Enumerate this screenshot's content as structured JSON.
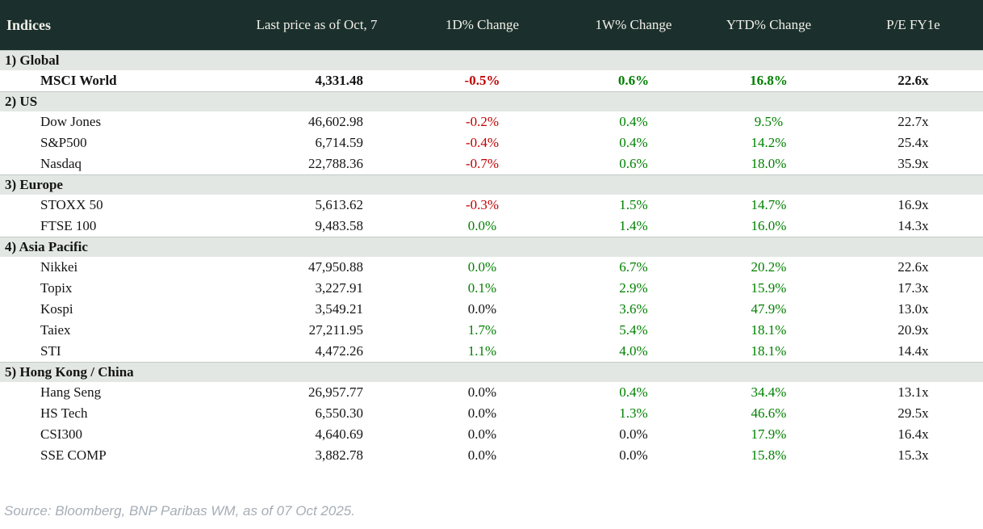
{
  "colors": {
    "header_bg": "#1b302c",
    "header_text": "#f2efe9",
    "section_bg": "#e2e7e3",
    "negative": "#c00000",
    "positive": "#008000",
    "neutral": "#141414",
    "source_text": "#a6aeb6"
  },
  "header": {
    "columns": [
      "Indices",
      "Last price as of Oct, 7",
      "1D% Change",
      "1W% Change",
      "YTD% Change",
      "P/E FY1e"
    ]
  },
  "sections": [
    {
      "label": "1) Global",
      "rows": [
        {
          "name": "MSCI World",
          "bold": true,
          "last": "4,331.48",
          "d1": "-0.5%",
          "d1_color": "neg",
          "w1": "0.6%",
          "w1_color": "pos",
          "ytd": "16.8%",
          "ytd_color": "pos",
          "pe": "22.6x"
        }
      ]
    },
    {
      "label": "2) US",
      "rows": [
        {
          "name": "Dow Jones",
          "bold": false,
          "last": "46,602.98",
          "d1": "-0.2%",
          "d1_color": "neg",
          "w1": "0.4%",
          "w1_color": "pos",
          "ytd": "9.5%",
          "ytd_color": "pos",
          "pe": "22.7x"
        },
        {
          "name": "S&P500",
          "bold": false,
          "last": "6,714.59",
          "d1": "-0.4%",
          "d1_color": "neg",
          "w1": "0.4%",
          "w1_color": "pos",
          "ytd": "14.2%",
          "ytd_color": "pos",
          "pe": "25.4x"
        },
        {
          "name": "Nasdaq",
          "bold": false,
          "last": "22,788.36",
          "d1": "-0.7%",
          "d1_color": "neg",
          "w1": "0.6%",
          "w1_color": "pos",
          "ytd": "18.0%",
          "ytd_color": "pos",
          "pe": "35.9x"
        }
      ]
    },
    {
      "label": "3) Europe",
      "rows": [
        {
          "name": "STOXX 50",
          "bold": false,
          "last": "5,613.62",
          "d1": "-0.3%",
          "d1_color": "neg",
          "w1": "1.5%",
          "w1_color": "pos",
          "ytd": "14.7%",
          "ytd_color": "pos",
          "pe": "16.9x"
        },
        {
          "name": "FTSE 100",
          "bold": false,
          "last": "9,483.58",
          "d1": "0.0%",
          "d1_color": "pos",
          "w1": "1.4%",
          "w1_color": "pos",
          "ytd": "16.0%",
          "ytd_color": "pos",
          "pe": "14.3x"
        }
      ]
    },
    {
      "label": "4) Asia Pacific",
      "rows": [
        {
          "name": "Nikkei",
          "bold": false,
          "last": "47,950.88",
          "d1": "0.0%",
          "d1_color": "pos",
          "w1": "6.7%",
          "w1_color": "pos",
          "ytd": "20.2%",
          "ytd_color": "pos",
          "pe": "22.6x"
        },
        {
          "name": "Topix",
          "bold": false,
          "last": "3,227.91",
          "d1": "0.1%",
          "d1_color": "pos",
          "w1": "2.9%",
          "w1_color": "pos",
          "ytd": "15.9%",
          "ytd_color": "pos",
          "pe": "17.3x"
        },
        {
          "name": "Kospi",
          "bold": false,
          "last": "3,549.21",
          "d1": "0.0%",
          "d1_color": "flat",
          "w1": "3.6%",
          "w1_color": "pos",
          "ytd": "47.9%",
          "ytd_color": "pos",
          "pe": "13.0x"
        },
        {
          "name": "Taiex",
          "bold": false,
          "last": "27,211.95",
          "d1": "1.7%",
          "d1_color": "pos",
          "w1": "5.4%",
          "w1_color": "pos",
          "ytd": "18.1%",
          "ytd_color": "pos",
          "pe": "20.9x"
        },
        {
          "name": "STI",
          "bold": false,
          "last": "4,472.26",
          "d1": "1.1%",
          "d1_color": "pos",
          "w1": "4.0%",
          "w1_color": "pos",
          "ytd": "18.1%",
          "ytd_color": "pos",
          "pe": "14.4x"
        }
      ]
    },
    {
      "label": "5) Hong Kong / China",
      "rows": [
        {
          "name": "Hang Seng",
          "bold": false,
          "last": "26,957.77",
          "d1": "0.0%",
          "d1_color": "flat",
          "w1": "0.4%",
          "w1_color": "pos",
          "ytd": "34.4%",
          "ytd_color": "pos",
          "pe": "13.1x"
        },
        {
          "name": "HS Tech",
          "bold": false,
          "last": "6,550.30",
          "d1": "0.0%",
          "d1_color": "flat",
          "w1": "1.3%",
          "w1_color": "pos",
          "ytd": "46.6%",
          "ytd_color": "pos",
          "pe": "29.5x"
        },
        {
          "name": "CSI300",
          "bold": false,
          "last": "4,640.69",
          "d1": "0.0%",
          "d1_color": "flat",
          "w1": "0.0%",
          "w1_color": "flat",
          "ytd": "17.9%",
          "ytd_color": "pos",
          "pe": "16.4x"
        },
        {
          "name": "SSE COMP",
          "bold": false,
          "last": "3,882.78",
          "d1": "0.0%",
          "d1_color": "flat",
          "w1": "0.0%",
          "w1_color": "flat",
          "ytd": "15.8%",
          "ytd_color": "pos",
          "pe": "15.3x"
        }
      ]
    }
  ],
  "footer": {
    "source": "Source: Bloomberg, BNP Paribas WM, as of 07 Oct 2025."
  },
  "chart_data": {
    "type": "table",
    "title": "Indices",
    "columns": [
      "Indices",
      "Last price as of Oct, 7",
      "1D% Change",
      "1W% Change",
      "YTD% Change",
      "P/E FY1e"
    ],
    "rows": [
      [
        "1) Global",
        "",
        "",
        "",
        "",
        ""
      ],
      [
        "MSCI World",
        "4,331.48",
        "-0.5%",
        "0.6%",
        "16.8%",
        "22.6x"
      ],
      [
        "2) US",
        "",
        "",
        "",
        "",
        ""
      ],
      [
        "Dow Jones",
        "46,602.98",
        "-0.2%",
        "0.4%",
        "9.5%",
        "22.7x"
      ],
      [
        "S&P500",
        "6,714.59",
        "-0.4%",
        "0.4%",
        "14.2%",
        "25.4x"
      ],
      [
        "Nasdaq",
        "22,788.36",
        "-0.7%",
        "0.6%",
        "18.0%",
        "35.9x"
      ],
      [
        "3) Europe",
        "",
        "",
        "",
        "",
        ""
      ],
      [
        "STOXX 50",
        "5,613.62",
        "-0.3%",
        "1.5%",
        "14.7%",
        "16.9x"
      ],
      [
        "FTSE 100",
        "9,483.58",
        "0.0%",
        "1.4%",
        "16.0%",
        "14.3x"
      ],
      [
        "4) Asia Pacific",
        "",
        "",
        "",
        "",
        ""
      ],
      [
        "Nikkei",
        "47,950.88",
        "0.0%",
        "6.7%",
        "20.2%",
        "22.6x"
      ],
      [
        "Topix",
        "3,227.91",
        "0.1%",
        "2.9%",
        "15.9%",
        "17.3x"
      ],
      [
        "Kospi",
        "3,549.21",
        "0.0%",
        "3.6%",
        "47.9%",
        "13.0x"
      ],
      [
        "Taiex",
        "27,211.95",
        "1.7%",
        "5.4%",
        "18.1%",
        "20.9x"
      ],
      [
        "STI",
        "4,472.26",
        "1.1%",
        "4.0%",
        "18.1%",
        "14.4x"
      ],
      [
        "5) Hong Kong / China",
        "",
        "",
        "",
        "",
        ""
      ],
      [
        "Hang Seng",
        "26,957.77",
        "0.0%",
        "0.4%",
        "34.4%",
        "13.1x"
      ],
      [
        "HS Tech",
        "6,550.30",
        "0.0%",
        "1.3%",
        "46.6%",
        "29.5x"
      ],
      [
        "CSI300",
        "4,640.69",
        "0.0%",
        "0.0%",
        "17.9%",
        "16.4x"
      ],
      [
        "SSE COMP",
        "3,882.78",
        "0.0%",
        "0.0%",
        "15.8%",
        "15.3x"
      ]
    ]
  }
}
